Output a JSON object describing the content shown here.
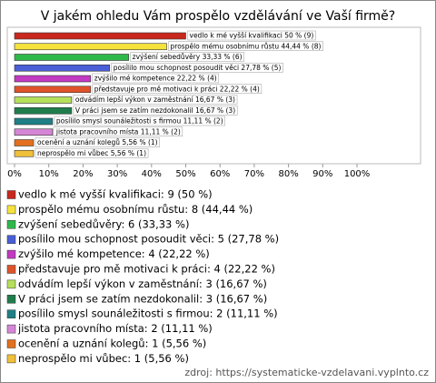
{
  "chart_data": {
    "type": "bar",
    "orientation": "horizontal",
    "title": "V jakém ohledu Vám prospělo vzdělávání ve Vaší firmě?",
    "categories": [
      "vedlo k mé vyšší kvalifikaci",
      "prospělo mému osobnímu růstu",
      "zvýšení sebedůvěry",
      "posílilo mou schopnost posoudit věci",
      "zvýšilo mé kompetence",
      "představuje pro mě motivaci k práci",
      "odvádím lepší výkon v zaměstnání",
      "V práci jsem se zatím nezdokonalil",
      "posílilo smysl sounáležitosti s firmou",
      "jistota pracovního místa",
      "ocenění a uznání kolegů",
      "neprospělo mi vůbec"
    ],
    "values": [
      50,
      44.44,
      33.33,
      27.78,
      22.22,
      22.22,
      16.67,
      16.67,
      11.11,
      11.11,
      5.56,
      5.56
    ],
    "value_labels": [
      "vedlo k mé vyšší kvalifikaci 50 % (9)",
      "prospělo mému osobnímu růstu 44,44 % (8)",
      "zvýšení sebedůvěry 33,33 % (6)",
      "posílilo mou schopnost posoudit věci 27,78 % (5)",
      "zvýšilo mé kompetence 22,22 % (4)",
      "představuje pro mě motivaci k práci 22,22 % (4)",
      "odvádím lepší výkon v zaměstnání 16,67 % (3)",
      "V práci jsem se zatím nezdokonalil 16,67 % (3)",
      "posílilo smysl sounáležitosti s firmou 11,11 % (2)",
      "jistota pracovního místa 11,11 % (2)",
      "ocenění a uznání kolegů 5,56 % (1)",
      "neprospělo mi vůbec 5,56 % (1)"
    ],
    "legend": [
      "vedlo k mé vyšší kvalifikaci: 9 (50 %)",
      "prospělo mému osobnímu růstu: 8 (44,44 %)",
      "zvýšení sebedůvěry: 6 (33,33 %)",
      "posílilo mou schopnost posoudit věci: 5 (27,78 %)",
      "zvýšilo mé kompetence: 4 (22,22 %)",
      "představuje pro mě motivaci k práci: 4 (22,22 %)",
      "odvádím lepší výkon v zaměstnání: 3 (16,67 %)",
      "V práci jsem se zatím nezdokonalil: 3 (16,67 %)",
      "posílilo smysl sounáležitosti s firmou: 2 (11,11 %)",
      "jistota pracovního místa: 2 (11,11 %)",
      "ocenění a uznání kolegů: 1 (5,56 %)",
      "neprospělo mi vůbec: 1 (5,56 %)"
    ],
    "colors": [
      "#c8281e",
      "#f5e33c",
      "#2fb84a",
      "#4a5ed6",
      "#c23ac2",
      "#e0532a",
      "#b6e05a",
      "#1f7d4c",
      "#1f7f86",
      "#d686d6",
      "#e3701e",
      "#f0c03a"
    ],
    "xlim": [
      0,
      100
    ],
    "xticks": [
      {
        "value": 0,
        "label": "0%"
      },
      {
        "value": 10,
        "label": "10%"
      },
      {
        "value": 20,
        "label": "20%"
      },
      {
        "value": 30,
        "label": "30%"
      },
      {
        "value": 40,
        "label": "40%"
      },
      {
        "value": 50,
        "label": "50%"
      },
      {
        "value": 60,
        "label": "60%"
      },
      {
        "value": 70,
        "label": "70%"
      },
      {
        "value": 80,
        "label": "80%"
      },
      {
        "value": 90,
        "label": "90%"
      },
      {
        "value": 100,
        "label": "100%"
      }
    ],
    "source": "zdroj: https://systematicke-vzdelavani.vyplnto.cz"
  }
}
